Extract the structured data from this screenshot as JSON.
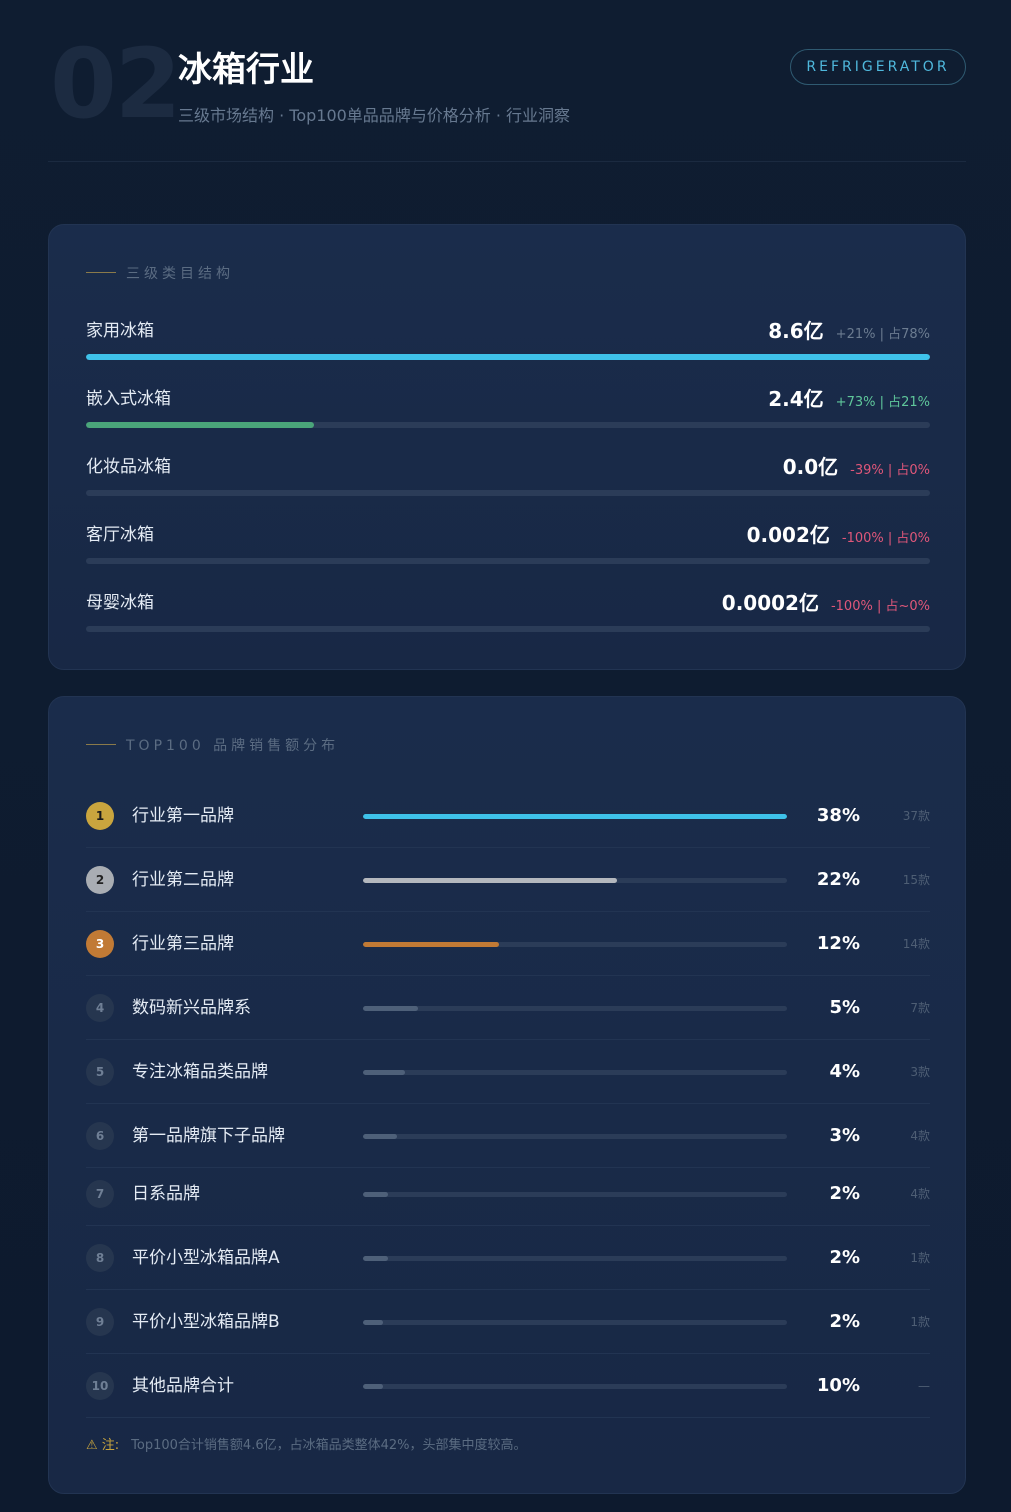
{
  "header": {
    "number": "02",
    "title": "冰箱行业",
    "subtitle": "三级市场结构 · Top100单品品牌与价格分析 · 行业洞察",
    "badge": "REFRIGERATOR"
  },
  "categories": {
    "section_label": "三级类目结构",
    "items": [
      {
        "name": "家用冰箱",
        "value": "8.6亿",
        "meta": "+21% | 占78%",
        "meta_tone": "gray",
        "share": 1.0,
        "color": "#3ec2ea"
      },
      {
        "name": "嵌入式冰箱",
        "value": "2.4亿",
        "meta": "+73% | 占21%",
        "meta_tone": "green",
        "share": 0.27,
        "color": "#4aa57a"
      },
      {
        "name": "化妆品冰箱",
        "value": "0.0亿",
        "meta": "-39% | 占0%",
        "meta_tone": "red",
        "share": 0,
        "color": "#3ec2ea"
      },
      {
        "name": "客厅冰箱",
        "value": "0.002亿",
        "meta": "-100% | 占0%",
        "meta_tone": "red",
        "share": 0,
        "color": "#3ec2ea"
      },
      {
        "name": "母婴冰箱",
        "value": "0.0002亿",
        "meta": "-100% | 占~0%",
        "meta_tone": "red",
        "share": 0,
        "color": "#3ec2ea"
      }
    ]
  },
  "brands": {
    "section_label": "TOP100 品牌销售额分布",
    "items": [
      {
        "rank": "1",
        "name": "行业第一品牌",
        "pct": "38%",
        "count": "37款",
        "share": 1.0,
        "color": "#3ec2ea",
        "tier": "r1"
      },
      {
        "rank": "2",
        "name": "行业第二品牌",
        "pct": "22%",
        "count": "15款",
        "share": 0.6,
        "color": "#b4b8be",
        "tier": "r2"
      },
      {
        "rank": "3",
        "name": "行业第三品牌",
        "pct": "12%",
        "count": "14款",
        "share": 0.32,
        "color": "#c17a35",
        "tier": "r3"
      },
      {
        "rank": "4",
        "name": "数码新兴品牌系",
        "pct": "5%",
        "count": "7款",
        "share": 0.13,
        "color": "#4e6079",
        "tier": "rn"
      },
      {
        "rank": "5",
        "name": "专注冰箱品类品牌",
        "pct": "4%",
        "count": "3款",
        "share": 0.1,
        "color": "#4e6079",
        "tier": "rn"
      },
      {
        "rank": "6",
        "name": "第一品牌旗下子品牌",
        "pct": "3%",
        "count": "4款",
        "share": 0.08,
        "color": "#4e6079",
        "tier": "rn"
      },
      {
        "rank": "7",
        "name": "日系品牌",
        "pct": "2%",
        "count": "4款",
        "share": 0.058,
        "color": "#4e6079",
        "tier": "rn"
      },
      {
        "rank": "8",
        "name": "平价小型冰箱品牌A",
        "pct": "2%",
        "count": "1款",
        "share": 0.058,
        "color": "#4e6079",
        "tier": "rn"
      },
      {
        "rank": "9",
        "name": "平价小型冰箱品牌B",
        "pct": "2%",
        "count": "1款",
        "share": 0.048,
        "color": "#4e6079",
        "tier": "rn"
      },
      {
        "rank": "10",
        "name": "其他品牌合计",
        "pct": "10%",
        "count": "—",
        "share": 0.048,
        "color": "#4e6079",
        "tier": "rn"
      }
    ],
    "note_prefix": "⚠ 注:",
    "note_text": "Top100合计销售额4.6亿，占冰箱品类整体42%，头部集中度较高。"
  }
}
